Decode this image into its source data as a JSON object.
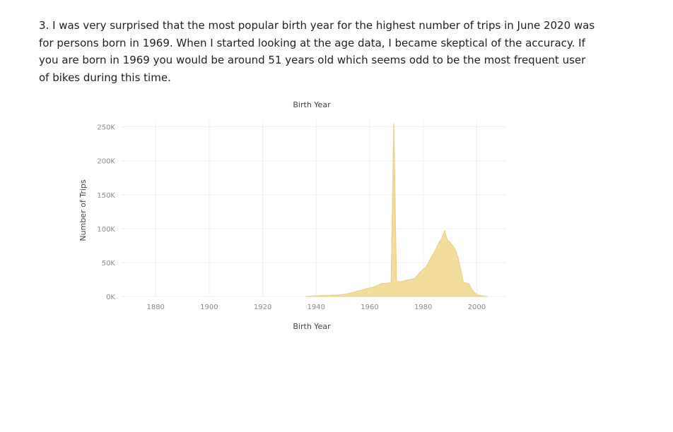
{
  "paragraph": {
    "lines": [
      "3. I was very surprised that the most popular birth year for the highest number of trips in June 2020 was",
      "for persons born in 1969. When I started looking at the age data, I became skeptical of the accuracy. If",
      "you are born in 1969 you would be around 51 years old which seems odd to be the most frequent user",
      "of bikes during this time."
    ]
  },
  "chart_data": {
    "type": "area",
    "title": "Birth Year",
    "xlabel": "Birth Year",
    "ylabel": "Number of Trips",
    "xlim": [
      1867,
      2011
    ],
    "ylim": [
      0,
      260000
    ],
    "x_ticks": [
      1880,
      1900,
      1920,
      1940,
      1960,
      1980,
      2000
    ],
    "x_tick_labels": [
      "1880",
      "1900",
      "1920",
      "1940",
      "1960",
      "1980",
      "2000"
    ],
    "y_ticks": [
      0,
      50000,
      100000,
      150000,
      200000,
      250000
    ],
    "y_tick_labels": [
      "0K",
      "50K",
      "100K",
      "150K",
      "200K",
      "250K"
    ],
    "grid": true,
    "fill_color": "#f2dd9c",
    "line_color": "#ead08a",
    "series": [
      {
        "x": [
          1936,
          1938,
          1940,
          1942,
          1944,
          1946,
          1948,
          1950,
          1952,
          1953,
          1954,
          1955,
          1956,
          1957,
          1958,
          1959,
          1960,
          1961,
          1962,
          1963,
          1964,
          1965,
          1966,
          1967,
          1968,
          1969,
          1970,
          1971,
          1972,
          1973,
          1974,
          1975,
          1976,
          1977,
          1978,
          1979,
          1980,
          1981,
          1982,
          1983,
          1984,
          1985,
          1986,
          1987,
          1988,
          1989,
          1990,
          1991,
          1992,
          1993,
          1994,
          1995,
          1996,
          1997,
          1998,
          1999,
          2000,
          2001,
          2002,
          2003,
          2004
        ],
        "values": [
          0,
          600,
          800,
          1200,
          1500,
          1800,
          2200,
          2700,
          4500,
          5500,
          6000,
          7500,
          8500,
          9000,
          10500,
          11500,
          12500,
          13500,
          14500,
          16500,
          18500,
          19500,
          19000,
          20000,
          21000,
          255000,
          22500,
          21500,
          22000,
          23000,
          24000,
          25000,
          25500,
          27000,
          32000,
          36000,
          40000,
          43000,
          50000,
          58000,
          64000,
          72000,
          80000,
          86000,
          97000,
          83000,
          80000,
          75000,
          69000,
          57000,
          40000,
          21000,
          20000,
          19000,
          12000,
          6000,
          3000,
          1500,
          700,
          300,
          0
        ]
      }
    ]
  }
}
